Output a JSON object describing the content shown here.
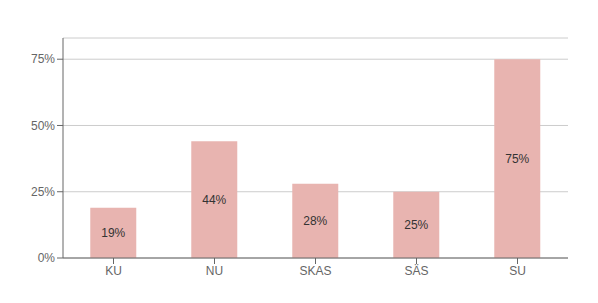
{
  "chart_data": {
    "type": "bar",
    "categories": [
      "KU",
      "NU",
      "SKAS",
      "SÄS",
      "SU"
    ],
    "values": [
      19,
      44,
      28,
      25,
      75
    ],
    "value_labels": [
      "19%",
      "44%",
      "28%",
      "25%",
      "75%"
    ],
    "data_labels": true,
    "color": "#e8b4b0",
    "ylim": [
      0,
      83
    ],
    "yticks": [
      {
        "value": 0,
        "label": "0%"
      },
      {
        "value": 25,
        "label": "25%"
      },
      {
        "value": 50,
        "label": "50%"
      },
      {
        "value": 75,
        "label": "75%"
      }
    ],
    "grid": true
  }
}
